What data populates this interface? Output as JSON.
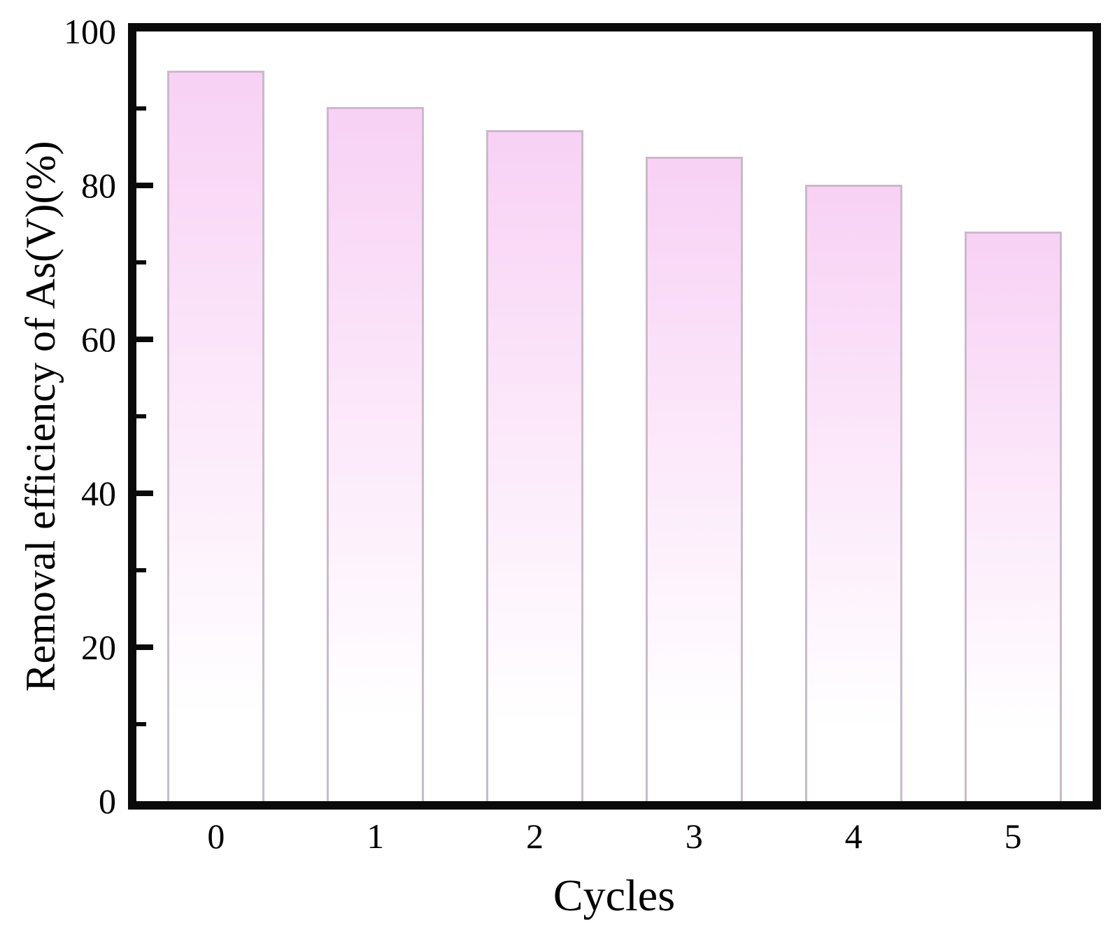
{
  "chart_data": {
    "type": "bar",
    "title": "",
    "xlabel": "Cycles",
    "ylabel": "Removal efficiency of As(V)(%)",
    "categories": [
      "0",
      "1",
      "2",
      "3",
      "4",
      "5"
    ],
    "values": [
      94.9,
      90.2,
      87.2,
      83.7,
      80.1,
      74.0
    ],
    "ylim": [
      0,
      100
    ],
    "yticks_major": [
      0,
      20,
      40,
      60,
      80,
      100
    ],
    "yticks_minor": [
      10,
      30,
      50,
      70,
      90
    ],
    "xticks_shown_as_marks": false,
    "grid": false,
    "legend": "none",
    "frame_color": "#0a0a0a",
    "bar_style": {
      "fill_top": "#f8d1f5",
      "fill_fade_to": "#ffffff",
      "fade_stop_percent": 88,
      "border_color": "#c9bac9",
      "bar_width_fraction": 0.61
    }
  }
}
